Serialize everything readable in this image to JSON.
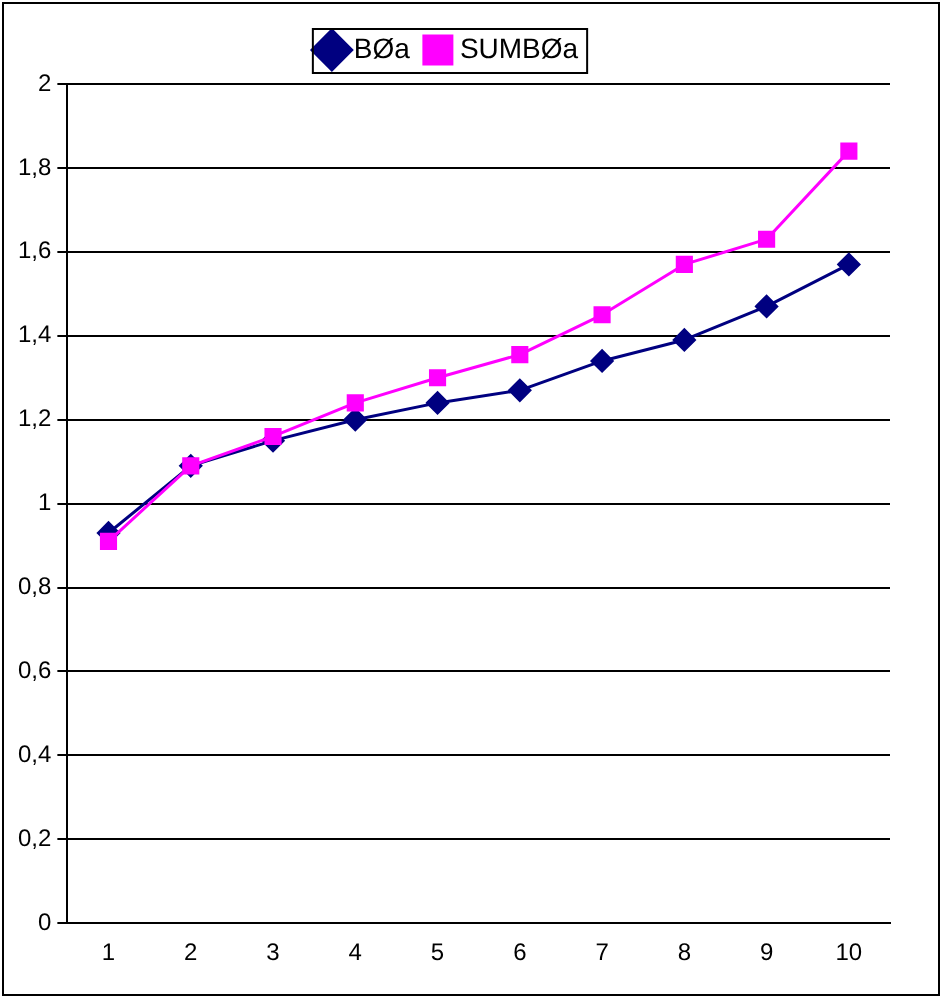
{
  "chart_data": {
    "type": "line",
    "categories": [
      "1",
      "2",
      "3",
      "4",
      "5",
      "6",
      "7",
      "8",
      "9",
      "10"
    ],
    "series": [
      {
        "name": "BØa",
        "color": "#000080",
        "marker": "diamond",
        "values": [
          0.93,
          1.09,
          1.15,
          1.2,
          1.24,
          1.27,
          1.34,
          1.39,
          1.47,
          1.57
        ]
      },
      {
        "name": "SUMBØa",
        "color": "#ff00ff",
        "marker": "square",
        "values": [
          0.91,
          1.09,
          1.16,
          1.24,
          1.3,
          1.355,
          1.45,
          1.57,
          1.63,
          1.84
        ]
      }
    ],
    "ylim": [
      0,
      2
    ],
    "yticks": [
      {
        "value": 0,
        "label": "0"
      },
      {
        "value": 0.2,
        "label": "0,2"
      },
      {
        "value": 0.4,
        "label": "0,4"
      },
      {
        "value": 0.6,
        "label": "0,6"
      },
      {
        "value": 0.8,
        "label": "0,8"
      },
      {
        "value": 1,
        "label": "1"
      },
      {
        "value": 1.2,
        "label": "1,2"
      },
      {
        "value": 1.4,
        "label": "1,4"
      },
      {
        "value": 1.6,
        "label": "1,6"
      },
      {
        "value": 1.8,
        "label": "1,8"
      },
      {
        "value": 2,
        "label": "2"
      }
    ],
    "grid": "y",
    "legend": "top",
    "line_style": "solid"
  }
}
